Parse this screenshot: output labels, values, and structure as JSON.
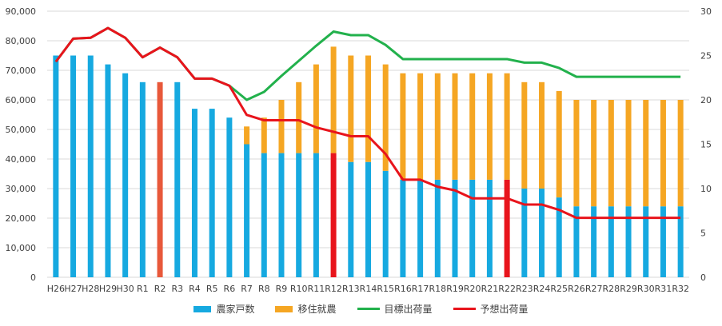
{
  "chart_data": {
    "type": "bar",
    "title": "",
    "xlabel": "",
    "ylabel": "",
    "categories": [
      "H26",
      "H27",
      "H28",
      "H29",
      "H30",
      "R1",
      "R2",
      "R3",
      "R4",
      "R5",
      "R6",
      "R7",
      "R8",
      "R9",
      "R10",
      "R11",
      "R12",
      "R13",
      "R14",
      "R15",
      "R16",
      "R17",
      "R18",
      "R19",
      "R20",
      "R21",
      "R22",
      "R23",
      "R24",
      "R25",
      "R26",
      "R27",
      "R28",
      "R29",
      "R30",
      "R31",
      "R32"
    ],
    "y_left": {
      "min": 0,
      "max": 90000,
      "ticks": [
        "0",
        "10,000",
        "20,000",
        "30,000",
        "40,000",
        "50,000",
        "60,000",
        "70,000",
        "80,000",
        "90,000"
      ]
    },
    "y_right": {
      "min": 0,
      "max": 30,
      "ticks": [
        "0",
        "5",
        "10",
        "15",
        "20",
        "25",
        "30"
      ]
    },
    "grid": true,
    "legend_position": "bottom",
    "series": [
      {
        "name": "農家戸数",
        "kind": "bar_stacked",
        "axis": "left",
        "color": "#16a9e0",
        "values": [
          75000,
          75000,
          75000,
          72000,
          69000,
          66000,
          66000,
          66000,
          57000,
          57000,
          54000,
          45000,
          42000,
          42000,
          42000,
          42000,
          42000,
          39000,
          39000,
          36000,
          33000,
          33000,
          33000,
          33000,
          33000,
          33000,
          33000,
          30000,
          30000,
          27000,
          24000,
          24000,
          24000,
          24000,
          24000,
          24000,
          24000
        ]
      },
      {
        "name": "移住就農",
        "kind": "bar_stacked",
        "axis": "left",
        "color": "#f5a623",
        "values": [
          0,
          0,
          0,
          0,
          0,
          0,
          0,
          0,
          0,
          0,
          0,
          6000,
          12000,
          18000,
          24000,
          30000,
          36000,
          36000,
          36000,
          36000,
          36000,
          36000,
          36000,
          36000,
          36000,
          36000,
          36000,
          36000,
          36000,
          36000,
          36000,
          36000,
          36000,
          36000,
          36000,
          36000,
          36000
        ]
      },
      {
        "name": "目標出荷量",
        "kind": "line",
        "axis": "right",
        "color": "#22b14c",
        "values": [
          24.3,
          26.9,
          27.0,
          28.1,
          27.0,
          24.8,
          25.9,
          24.8,
          22.4,
          22.4,
          21.6,
          20.0,
          20.9,
          22.7,
          24.4,
          26.1,
          27.7,
          27.3,
          27.3,
          26.2,
          24.6,
          24.6,
          24.6,
          24.6,
          24.6,
          24.6,
          24.6,
          24.2,
          24.2,
          23.6,
          22.6,
          22.6,
          22.6,
          22.6,
          22.6,
          22.6,
          22.6
        ]
      },
      {
        "name": "予想出荷量",
        "kind": "line",
        "axis": "right",
        "color": "#e8141c",
        "values": [
          24.3,
          26.9,
          27.0,
          28.1,
          27.0,
          24.8,
          25.9,
          24.8,
          22.4,
          22.4,
          21.6,
          18.3,
          17.7,
          17.7,
          17.7,
          16.9,
          16.4,
          15.9,
          15.9,
          13.9,
          11.0,
          11.0,
          10.2,
          9.8,
          8.9,
          8.9,
          8.9,
          8.2,
          8.2,
          7.6,
          6.7,
          6.7,
          6.7,
          6.7,
          6.7,
          6.7,
          6.7
        ]
      }
    ],
    "highlights": [
      {
        "category": "R2",
        "color": "#e8583a"
      },
      {
        "category": "R12",
        "color": "#e8141c"
      },
      {
        "category": "R22",
        "color": "#e8141c"
      }
    ]
  }
}
